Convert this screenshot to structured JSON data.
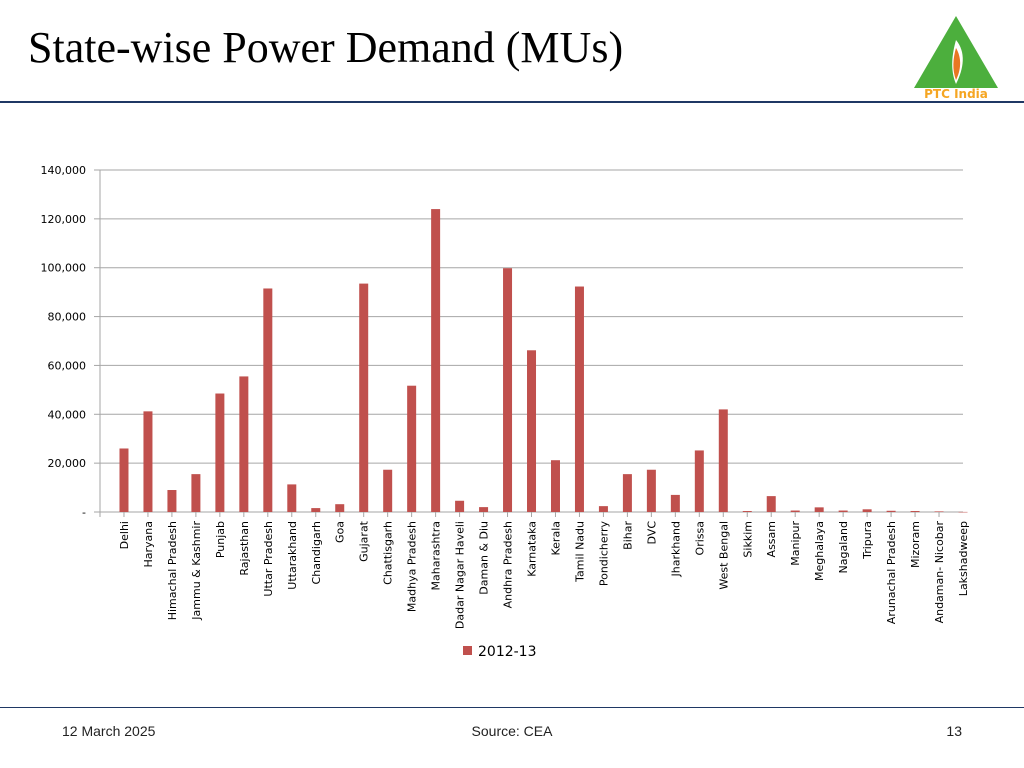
{
  "slide": {
    "title": "State-wise Power Demand (MUs)",
    "logo_text": "PTC India",
    "footer_date": "12 March 2025",
    "footer_source": "Source: CEA",
    "page_number": "13"
  },
  "colors": {
    "bar": "#c0504d",
    "grid": "#a6a6a6",
    "rule": "#1f3864",
    "logo_green": "#4caf3d",
    "logo_orange": "#e87722",
    "logo_text": "#f5a623"
  },
  "chart_data": {
    "type": "bar",
    "categories": [
      "Delhi",
      "Haryana",
      "Himachal Pradesh",
      "Jammu & Kashmir",
      "Punjab",
      "Rajasthan",
      "Uttar Pradesh",
      "Uttarakhand",
      "Chandigarh",
      "Goa",
      "Gujarat",
      "Chattisgarh",
      "Madhya Pradesh",
      "Maharashtra",
      "Dadar Nagar Haveli",
      "Daman & Diu",
      "Andhra Pradesh",
      "Karnataka",
      "Kerala",
      "Tamil Nadu",
      "Pondicherry",
      "Bihar",
      "DVC",
      "Jharkhand",
      "Orissa",
      "West Bengal",
      "Sikkim",
      "Assam",
      "Manipur",
      "Meghalaya",
      "Nagaland",
      "Tripura",
      "Arunachal Pradesh",
      "Mizoram",
      "Andaman- Nicobar",
      "Lakshadweep"
    ],
    "series": [
      {
        "name": "2012-13",
        "values": [
          26000,
          41200,
          9000,
          15500,
          48500,
          55500,
          91500,
          11300,
          1600,
          3200,
          93500,
          17300,
          51700,
          124000,
          4600,
          2000,
          99800,
          66200,
          21200,
          92300,
          2400,
          15500,
          17300,
          7000,
          25200,
          42000,
          400,
          6500,
          600,
          1900,
          600,
          1100,
          500,
          400,
          250,
          40
        ]
      }
    ],
    "title": "",
    "xlabel": "",
    "ylabel": "",
    "ylim": [
      0,
      140000
    ],
    "yticks": [
      0,
      20000,
      40000,
      60000,
      80000,
      100000,
      120000,
      140000
    ],
    "ytick_labels": [
      "-",
      "20,000",
      "40,000",
      "60,000",
      "80,000",
      "100,000",
      "120,000",
      "140,000"
    ],
    "grid": true,
    "legend_position": "bottom"
  }
}
